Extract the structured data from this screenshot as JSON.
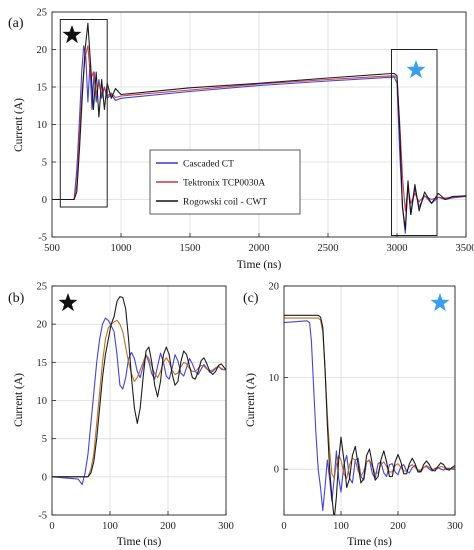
{
  "chart_data": [
    {
      "id": "a",
      "type": "line",
      "panel_label": "(a)",
      "xlabel": "Time (ns)",
      "ylabel": "Current (A)",
      "xlim": [
        500,
        3500
      ],
      "ylim": [
        -5,
        25
      ],
      "xticks": [
        500,
        1000,
        1500,
        2000,
        2500,
        3000,
        3500
      ],
      "yticks": [
        -5,
        0,
        5,
        10,
        15,
        20,
        25
      ],
      "grid": true,
      "legend_position": "center",
      "legend": [
        "Cascaded CT",
        "Tektronix TCP0030A",
        "Rogowski coil - CWT"
      ],
      "zoom_boxes": [
        {
          "x": [
            560,
            900
          ],
          "y": [
            -1,
            24
          ],
          "marker": "black-star"
        },
        {
          "x": [
            2960,
            3290
          ],
          "y": [
            -4.8,
            20
          ],
          "marker": "blue-star"
        }
      ],
      "series": [
        {
          "name": "Cascaded CT",
          "color": "#3a3ad6",
          "x": [
            500,
            640,
            660,
            680,
            700,
            715,
            730,
            745,
            760,
            775,
            790,
            805,
            820,
            840,
            860,
            880,
            900,
            930,
            960,
            1000,
            1500,
            2000,
            2500,
            2960,
            2980,
            3000,
            3020,
            3040,
            3060,
            3080,
            3100,
            3130,
            3160,
            3200,
            3250,
            3300,
            3350,
            3400,
            3500
          ],
          "y": [
            0,
            0,
            0,
            4,
            11,
            17,
            20.5,
            19,
            13,
            18,
            12,
            17,
            13,
            16,
            13.5,
            15,
            13.5,
            14,
            13.2,
            13.5,
            14.4,
            15.2,
            15.8,
            16.3,
            16.3,
            15.5,
            6,
            -1,
            -4.5,
            2,
            -2,
            1.5,
            -1,
            0.5,
            -0.5,
            0.3,
            0,
            0.2,
            0.4
          ]
        },
        {
          "name": "Tektronix TCP0030A",
          "color": "#cc3344",
          "x": [
            500,
            640,
            660,
            680,
            700,
            720,
            740,
            760,
            780,
            800,
            820,
            840,
            860,
            880,
            900,
            930,
            960,
            1000,
            1500,
            2000,
            2500,
            2960,
            2980,
            3000,
            3020,
            3040,
            3060,
            3080,
            3100,
            3130,
            3160,
            3200,
            3250,
            3300,
            3350,
            3400,
            3500
          ],
          "y": [
            0,
            0,
            0,
            2,
            9,
            15,
            19,
            20.5,
            16,
            17,
            14,
            15.5,
            14,
            15,
            13.8,
            14.2,
            13.6,
            13.8,
            14.6,
            15.4,
            16,
            16.5,
            16.5,
            16.2,
            10,
            3,
            -1.5,
            1.5,
            -0.5,
            0.8,
            -0.3,
            0.5,
            0,
            0.3,
            0.2,
            0.3,
            0.5
          ]
        },
        {
          "name": "Rogowski coil - CWT",
          "color": "#111111",
          "x": [
            500,
            640,
            660,
            680,
            700,
            720,
            740,
            760,
            780,
            800,
            820,
            840,
            860,
            880,
            900,
            930,
            960,
            1000,
            1500,
            2000,
            2500,
            2960,
            2980,
            3000,
            3020,
            3040,
            3060,
            3080,
            3100,
            3130,
            3160,
            3200,
            3250,
            3300,
            3350,
            3400,
            3500
          ],
          "y": [
            0,
            0,
            0,
            1,
            7,
            14,
            20,
            23.5,
            18,
            12,
            17,
            11,
            16,
            12,
            15.5,
            13.5,
            14.8,
            14,
            14.9,
            15.5,
            16.2,
            16.8,
            16.8,
            16.5,
            9,
            -1,
            -4,
            2.5,
            -2,
            2,
            -1.5,
            1,
            -0.5,
            0.8,
            0,
            0.4,
            0.5
          ]
        }
      ]
    },
    {
      "id": "b",
      "type": "line",
      "panel_label": "(b)",
      "xlabel": "Time (ns)",
      "ylabel": "Current (A)",
      "xlim": [
        0,
        300
      ],
      "ylim": [
        -5,
        25
      ],
      "xticks": [
        0,
        100,
        200,
        300
      ],
      "yticks": [
        -5,
        0,
        5,
        10,
        15,
        20,
        25
      ],
      "grid": true,
      "marker": "black-star",
      "series": [
        {
          "name": "Cascaded CT",
          "color": "#3a3ad6",
          "x": [
            0,
            45,
            52,
            57,
            62,
            67,
            72,
            77,
            82,
            87,
            92,
            97,
            102,
            107,
            112,
            117,
            122,
            127,
            132,
            137,
            142,
            147,
            152,
            157,
            162,
            167,
            172,
            177,
            182,
            187,
            192,
            197,
            202,
            207,
            212,
            217,
            222,
            227,
            232,
            237,
            242,
            247,
            252,
            257,
            262,
            267,
            272,
            277,
            282,
            287,
            292,
            297,
            300
          ],
          "y": [
            0,
            -0.3,
            -1,
            0.5,
            3,
            7,
            11,
            15,
            18,
            20,
            20.8,
            20.5,
            19.8,
            19,
            16,
            12,
            11.5,
            13,
            15.5,
            16.3,
            15.5,
            13.8,
            13,
            14.5,
            16,
            15,
            13.5,
            12.8,
            14.5,
            16.2,
            15,
            13.2,
            12.8,
            14.2,
            16,
            15.2,
            13.6,
            13.2,
            14.3,
            15.5,
            14.8,
            13.8,
            13.4,
            14.1,
            14.7,
            14.2,
            13.7,
            13.8,
            14.2,
            14.5,
            14.1,
            14,
            14.2
          ]
        },
        {
          "name": "Tektronix TCP0030A",
          "color": "#b86820",
          "x": [
            0,
            55,
            62,
            67,
            72,
            77,
            82,
            87,
            92,
            97,
            102,
            107,
            112,
            117,
            122,
            127,
            132,
            137,
            142,
            147,
            152,
            157,
            162,
            167,
            172,
            177,
            182,
            187,
            192,
            197,
            202,
            207,
            212,
            217,
            222,
            227,
            232,
            237,
            242,
            247,
            252,
            257,
            262,
            267,
            272,
            277,
            282,
            287,
            292,
            297,
            300
          ],
          "y": [
            0,
            0,
            0,
            1,
            3,
            7,
            11,
            15,
            18,
            19.5,
            20,
            20.3,
            20.5,
            20,
            19,
            17,
            15,
            13.5,
            12.5,
            13,
            14,
            15,
            16,
            15.5,
            14.5,
            13.5,
            13,
            13.8,
            15,
            15.6,
            15,
            14,
            13.4,
            13.6,
            14.4,
            15,
            14.8,
            14.2,
            13.8,
            13.8,
            14.2,
            14.6,
            14.5,
            14.1,
            13.9,
            14,
            14.3,
            14.4,
            14.2,
            14,
            14.1
          ]
        },
        {
          "name": "Rogowski coil - CWT",
          "color": "#111111",
          "x": [
            0,
            55,
            62,
            67,
            72,
            77,
            82,
            87,
            92,
            97,
            102,
            107,
            112,
            117,
            122,
            127,
            132,
            137,
            142,
            147,
            152,
            157,
            162,
            167,
            172,
            177,
            182,
            187,
            192,
            197,
            202,
            207,
            212,
            217,
            222,
            227,
            232,
            237,
            242,
            247,
            252,
            257,
            262,
            267,
            272,
            277,
            282,
            287,
            292,
            297,
            300
          ],
          "y": [
            0,
            0,
            0,
            0.5,
            2,
            5,
            9,
            13,
            16,
            18,
            20,
            21,
            23,
            23.6,
            23.5,
            22,
            18,
            13,
            9,
            7,
            9,
            13,
            16.5,
            17,
            15,
            12,
            10.5,
            12.5,
            16,
            17,
            16,
            13.5,
            12,
            12.5,
            15,
            16.5,
            16,
            14.5,
            13,
            12.8,
            13.8,
            15.2,
            15.6,
            14.8,
            13.8,
            13.4,
            13.8,
            14.6,
            14.8,
            14.3,
            14
          ]
        }
      ]
    },
    {
      "id": "c",
      "type": "line",
      "panel_label": "(c)",
      "xlabel": "Time (ns)",
      "ylabel": "Current (A)",
      "xlim": [
        0,
        300
      ],
      "ylim": [
        -5,
        20
      ],
      "xticks": [
        0,
        100,
        200,
        300
      ],
      "yticks": [
        0,
        10,
        20
      ],
      "grid": true,
      "marker": "blue-star",
      "series": [
        {
          "name": "Cascaded CT",
          "color": "#3a3ad6",
          "x": [
            0,
            40,
            45,
            48,
            52,
            56,
            60,
            64,
            68,
            72,
            76,
            80,
            84,
            88,
            92,
            96,
            100,
            105,
            110,
            115,
            120,
            125,
            130,
            135,
            140,
            145,
            150,
            155,
            160,
            165,
            170,
            175,
            180,
            185,
            190,
            195,
            200,
            205,
            210,
            215,
            220,
            225,
            230,
            235,
            240,
            245,
            250,
            255,
            260,
            265,
            270,
            275,
            280,
            285,
            290,
            295,
            300
          ],
          "y": [
            16,
            16.2,
            16,
            14,
            9,
            4,
            0,
            -2,
            -4.5,
            -2,
            1,
            -1,
            -3.5,
            -1,
            2,
            -1,
            -2.5,
            0.5,
            1.5,
            -1,
            -1.5,
            1,
            1.2,
            -0.8,
            -1.2,
            0.8,
            1,
            -0.5,
            -1,
            0.6,
            0.8,
            -0.4,
            -0.8,
            0.5,
            0.6,
            -0.3,
            -0.6,
            0.3,
            0.5,
            -0.2,
            -0.4,
            0.2,
            0.4,
            -0.1,
            -0.3,
            0.2,
            0.3,
            0,
            -0.2,
            0.1,
            0.2,
            0,
            -0.1,
            0.1,
            0.1,
            0,
            0
          ]
        },
        {
          "name": "Tektronix TCP0030A",
          "color": "#b86820",
          "x": [
            0,
            60,
            64,
            68,
            72,
            76,
            80,
            84,
            88,
            92,
            96,
            100,
            105,
            110,
            115,
            120,
            125,
            130,
            135,
            140,
            145,
            150,
            155,
            160,
            165,
            170,
            175,
            180,
            185,
            190,
            195,
            200,
            205,
            210,
            215,
            220,
            225,
            230,
            235,
            240,
            245,
            250,
            255,
            260,
            265,
            270,
            275,
            280,
            285,
            290,
            295,
            300
          ],
          "y": [
            16.5,
            16.5,
            16.3,
            15,
            11,
            6,
            2,
            -0.5,
            -1,
            0.5,
            1.5,
            1,
            -0.5,
            -1,
            0.5,
            1.2,
            1,
            -0.2,
            -0.8,
            -0.2,
            0.8,
            1,
            0.3,
            -0.5,
            -0.4,
            0.5,
            0.8,
            0.3,
            -0.3,
            -0.3,
            0.4,
            0.6,
            0.2,
            -0.2,
            -0.2,
            0.3,
            0.5,
            0.2,
            -0.1,
            -0.1,
            0.2,
            0.4,
            0.2,
            0,
            0,
            0.1,
            0.3,
            0.2,
            0,
            0,
            0.1,
            0.2
          ]
        },
        {
          "name": "Rogowski coil - CWT",
          "color": "#111111",
          "x": [
            0,
            60,
            64,
            68,
            72,
            76,
            80,
            84,
            88,
            92,
            96,
            100,
            105,
            110,
            115,
            120,
            125,
            130,
            135,
            140,
            145,
            150,
            155,
            160,
            165,
            170,
            175,
            180,
            185,
            190,
            195,
            200,
            205,
            210,
            215,
            220,
            225,
            230,
            235,
            240,
            245,
            250,
            255,
            260,
            265,
            270,
            275,
            280,
            285,
            290,
            295,
            300
          ],
          "y": [
            16.8,
            16.8,
            16.6,
            15.5,
            11,
            5,
            0,
            -3,
            -5.5,
            -3,
            1,
            3.5,
            1,
            -2,
            -1,
            1.5,
            2.5,
            0.5,
            -1.5,
            -1,
            1.5,
            2.2,
            0.5,
            -1.2,
            -0.8,
            1,
            2,
            0.8,
            -0.8,
            -0.8,
            0.8,
            1.6,
            0.8,
            -0.5,
            -0.5,
            0.6,
            1.2,
            0.6,
            -0.3,
            -0.3,
            0.5,
            0.9,
            0.5,
            -0.1,
            -0.2,
            0.3,
            0.7,
            0.5,
            0,
            -0.1,
            0.2,
            0.4
          ]
        }
      ]
    }
  ]
}
